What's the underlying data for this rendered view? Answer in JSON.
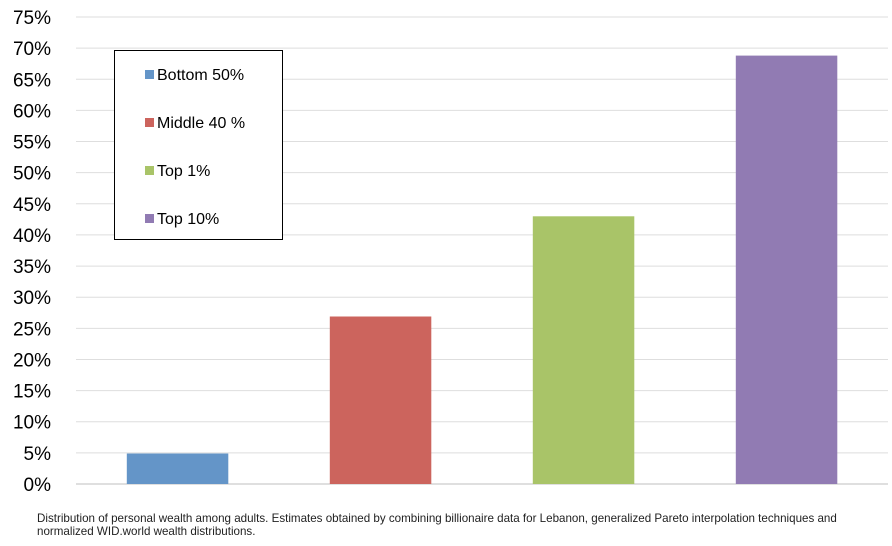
{
  "chart_data": {
    "type": "bar",
    "categories": [
      "Bottom 50%",
      "Middle 40 %",
      "Top 1%",
      "Top 10%"
    ],
    "values": [
      4.9,
      26.9,
      43.0,
      68.8
    ],
    "value_unit": "%",
    "colors": [
      "#6495c8",
      "#cc645d",
      "#a9c468",
      "#917bb3"
    ],
    "ylim": [
      0,
      75
    ],
    "ytick_step": 5,
    "ytick_labels": [
      "0%",
      "5%",
      "10%",
      "15%",
      "20%",
      "25%",
      "30%",
      "35%",
      "40%",
      "45%",
      "50%",
      "55%",
      "60%",
      "65%",
      "70%",
      "75%"
    ],
    "grid": true,
    "legend": {
      "placement": "top-left",
      "entries": [
        {
          "label": "Bottom 50%",
          "color": "#6495c8"
        },
        {
          "label": "Middle 40 %",
          "color": "#cc645d"
        },
        {
          "label": "Top 1%",
          "color": "#a9c468"
        },
        {
          "label": "Top 10%",
          "color": "#917bb3"
        }
      ]
    },
    "title": "",
    "xlabel": "",
    "ylabel": ""
  },
  "caption": "Distribution of personal wealth among adults. Estimates obtained by combining billionaire data for Lebanon, generalized Pareto interpolation techniques and normalized WID.world wealth distributions."
}
